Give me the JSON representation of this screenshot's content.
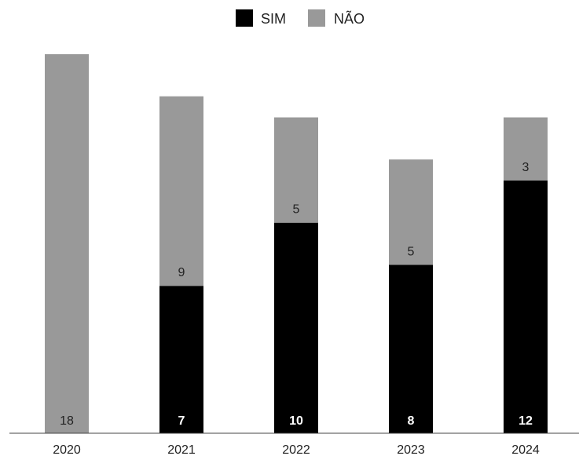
{
  "chart_data": {
    "type": "bar",
    "stacked": true,
    "categories": [
      "2020",
      "2021",
      "2022",
      "2023",
      "2024"
    ],
    "series": [
      {
        "name": "SIM",
        "values": [
          0,
          7,
          10,
          8,
          12
        ],
        "color": "#000000",
        "label_color": "#ffffff"
      },
      {
        "name": "NÃO",
        "values": [
          18,
          9,
          5,
          5,
          3
        ],
        "color": "#999999",
        "label_color": "#222222"
      }
    ],
    "legend": {
      "position": "top-center"
    },
    "ylim": [
      0,
      18
    ],
    "grid": false,
    "axis_color": "#444444"
  }
}
